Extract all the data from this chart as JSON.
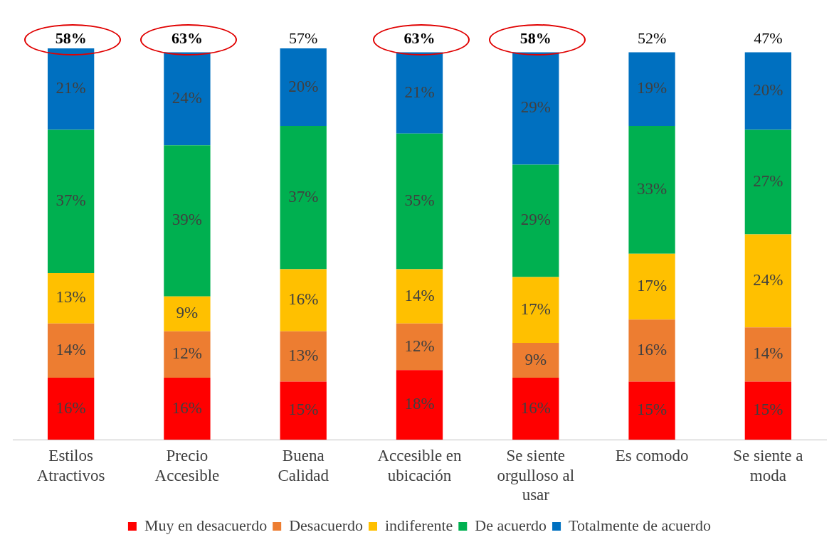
{
  "chart_data": {
    "type": "bar",
    "stacked": true,
    "categories": [
      "Estilos Atractivos",
      "Precio Accesible",
      "Buena Calidad",
      "Accesible en ubicación",
      "Se siente orgulloso al usar",
      "Es comodo",
      "Se siente a moda"
    ],
    "series": [
      {
        "name": "Muy en desacuerdo",
        "color": "#ff0000",
        "values": [
          16,
          16,
          15,
          18,
          16,
          15,
          15
        ],
        "value_labels": [
          "16%",
          "16%",
          "15%",
          "18%",
          "16%",
          "15%",
          "15%"
        ]
      },
      {
        "name": "Desacuerdo",
        "color": "#ed7d31",
        "values": [
          14,
          12,
          13,
          12,
          9,
          16,
          14
        ],
        "value_labels": [
          "14%",
          "12%",
          "13%",
          "12%",
          "9%",
          "16%",
          "14%"
        ]
      },
      {
        "name": "indiferente",
        "color": "#ffc000",
        "values": [
          13,
          9,
          16,
          14,
          17,
          17,
          24
        ],
        "value_labels": [
          "13%",
          "9%",
          "16%",
          "14%",
          "17%",
          "17%",
          "24%"
        ]
      },
      {
        "name": "De acuerdo",
        "color": "#00b050",
        "values": [
          37,
          39,
          37,
          35,
          29,
          33,
          27
        ],
        "value_labels": [
          "37%",
          "39%",
          "37%",
          "35%",
          "29%",
          "33%",
          "27%"
        ]
      },
      {
        "name": "Totalmente de acuerdo",
        "color": "#0070c0",
        "values": [
          21,
          24,
          20,
          21,
          29,
          19,
          20
        ],
        "value_labels": [
          "21%",
          "24%",
          "20%",
          "21%",
          "29%",
          "19%",
          "20%"
        ]
      }
    ],
    "annotations": [
      "58%",
      "63%",
      "57%",
      "63%",
      "58%",
      "52%",
      "47%"
    ],
    "grid": false,
    "legend": "bottom"
  }
}
